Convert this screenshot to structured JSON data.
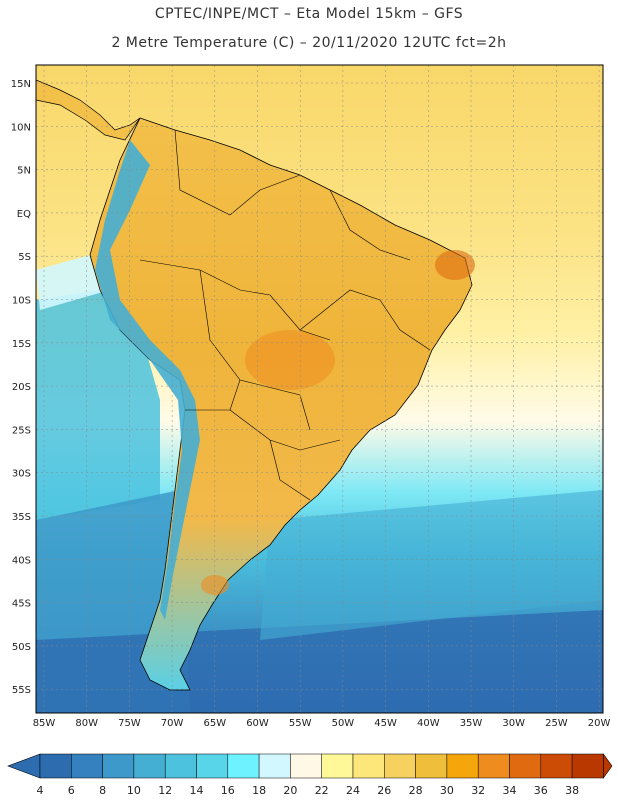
{
  "header": {
    "line1": "CPTEC/INPE/MCT –  Eta Model 15km – GFS",
    "line2": "2 Metre Temperature (C) – 20/11/2020 12UTC fct=2h"
  },
  "map": {
    "lat_labels": [
      "15N",
      "10N",
      "5N",
      "EQ",
      "5S",
      "10S",
      "15S",
      "20S",
      "25S",
      "30S",
      "35S",
      "40S",
      "45S",
      "50S",
      "55S"
    ],
    "lon_labels": [
      "85W",
      "80W",
      "75W",
      "70W",
      "65W",
      "60W",
      "55W",
      "50W",
      "45W",
      "40W",
      "35W",
      "30W",
      "25W",
      "20W"
    ]
  },
  "colorbar": {
    "labels": [
      "4",
      "6",
      "8",
      "10",
      "12",
      "14",
      "16",
      "18",
      "20",
      "22",
      "24",
      "26",
      "28",
      "30",
      "32",
      "34",
      "36",
      "38"
    ],
    "colors": [
      "#2e6cb0",
      "#3580be",
      "#3d99c9",
      "#45aed3",
      "#4cc2de",
      "#58d5e9",
      "#6ff2ff",
      "#d2f7ff",
      "#fff8e6",
      "#fff899",
      "#fde77a",
      "#f6d15f",
      "#efbf3c",
      "#f4a60a",
      "#ee8c1f",
      "#e06a0f",
      "#cc4b05",
      "#b83800"
    ]
  },
  "palette": {
    "ocean_warm": "#fbe08a",
    "ocean_mid": "#fffbe6",
    "ocean_cold": "#4cc2de",
    "land_warm": "#f0b63a",
    "andes": "#45aed3",
    "border": "#000000"
  }
}
